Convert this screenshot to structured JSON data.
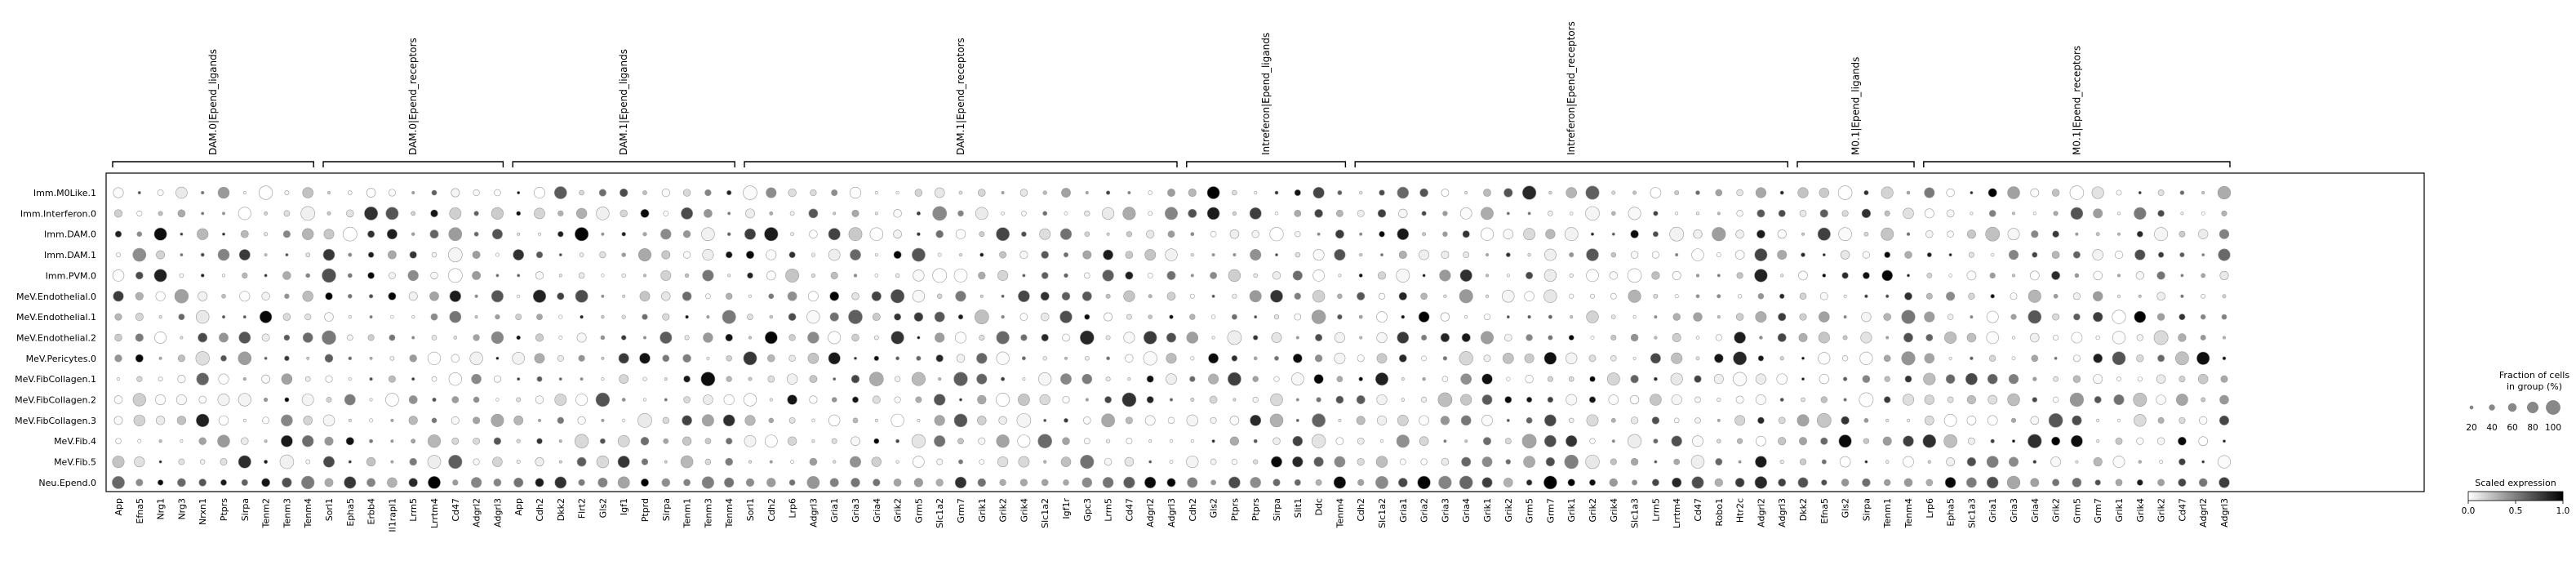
{
  "chart_data": {
    "type": "dotplot",
    "rows": [
      "Imm.M0Like.1",
      "Imm.Interferon.0",
      "Imm.DAM.0",
      "Imm.DAM.1",
      "Imm.PVM.0",
      "MeV.Endothelial.0",
      "MeV.Endothelial.1",
      "MeV.Endothelial.2",
      "MeV.Pericytes.0",
      "MeV.FibCollagen.1",
      "MeV.FibCollagen.2",
      "MeV.FibCollagen.3",
      "MeV.Fib.4",
      "MeV.Fib.5",
      "Neu.Epend.0"
    ],
    "groups": [
      {
        "name": "DAM.0|Epend_ligands",
        "genes": [
          "App",
          "Efna5",
          "Nrg1",
          "Nrg3",
          "Nrxn1",
          "Ptprs",
          "Sirpa",
          "Tenm2",
          "Tenm3",
          "Tenm4"
        ]
      },
      {
        "name": "DAM.0|Epend_receptors",
        "genes": [
          "Sorl1",
          "Epha5",
          "Erbb4",
          "Il1rapl1",
          "Lrrn5",
          "Lrrtm4",
          "Cd47",
          "Adgrl2",
          "Adgrl3"
        ]
      },
      {
        "name": "DAM.1|Epend_ligands",
        "genes": [
          "App",
          "Cdh2",
          "Dkk2",
          "Flrt2",
          "Gls2",
          "Igf1",
          "Ptprd",
          "Sirpa",
          "Tenm1",
          "Tenm3",
          "Tenm4"
        ]
      },
      {
        "name": "DAM.1|Epend_receptors",
        "genes": [
          "Sorl1",
          "Cdh2",
          "Lrp6",
          "Adgrl3",
          "Gria1",
          "Gria3",
          "Gria4",
          "Grik2",
          "Grm5",
          "Slc1a2",
          "Grm7",
          "Grik1",
          "Grik2",
          "Grik4",
          "Slc1a2",
          "Igf1r",
          "Gpc3",
          "Lrrn5",
          "Cd47",
          "Adgrl2",
          "Adgrl3"
        ]
      },
      {
        "name": "Intreferon|Epend_ligands",
        "genes": [
          "Cdh2",
          "Gls2",
          "Ptprs",
          "Ptprs",
          "Sirpa",
          "Slit1",
          "Ddc",
          "Tenm4"
        ]
      },
      {
        "name": "Intreferon|Epend_receptors",
        "genes": [
          "Cdh2",
          "Slc1a2",
          "Gria1",
          "Gria2",
          "Gria3",
          "Gria4",
          "Grik1",
          "Grik2",
          "Grm5",
          "Grm7",
          "Grik1",
          "Grik2",
          "Grik4",
          "Slc1a3",
          "Lrrn5",
          "Lrrtm4",
          "Cd47",
          "Robo1",
          "Htr2c",
          "Adgrl2",
          "Adgrl3"
        ]
      },
      {
        "name": "M0.1|Epend_ligands",
        "genes": [
          "Dkk2",
          "Efna5",
          "Gls2",
          "Sirpa",
          "Tenm1",
          "Tenm4"
        ]
      },
      {
        "name": "M0.1|Epend_receptors",
        "genes": [
          "Lrp6",
          "Epha5",
          "Slc1a3",
          "Gria1",
          "Gria3",
          "Gria4",
          "Grik2",
          "Grm5",
          "Grm7",
          "Grik1",
          "Grik4",
          "Grik2",
          "Cd47",
          "Adgrl2",
          "Adgrl3"
        ]
      }
    ],
    "size_legend": {
      "title": "Fraction of cells\nin group (%)",
      "ticks": [
        20,
        40,
        60,
        80,
        100
      ]
    },
    "color_legend": {
      "title": "Scaled expression",
      "ticks": [
        "0.0",
        "0.5",
        "1.0"
      ],
      "cmap": [
        "#ffffff",
        "#000000"
      ]
    },
    "colors": {
      "dot_edge": "#888888",
      "frame": "#000000"
    }
  }
}
